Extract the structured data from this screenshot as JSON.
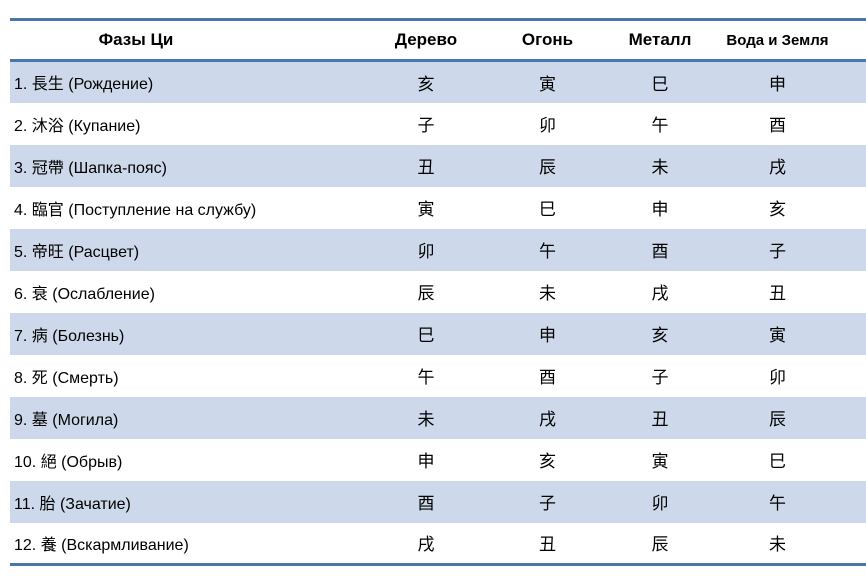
{
  "table": {
    "headers": [
      "Фазы Ци",
      "Дерево",
      "Огонь",
      "Металл",
      "Вода и Земля"
    ],
    "rows": [
      {
        "phase": "1. 長生 (Рождение)",
        "wood": "亥",
        "fire": "寅",
        "metal": "巳",
        "water_earth": "申"
      },
      {
        "phase": "2. 沐浴 (Купание)",
        "wood": "子",
        "fire": "卯",
        "metal": "午",
        "water_earth": "酉"
      },
      {
        "phase": "3. 冠帶 (Шапка-пояс)",
        "wood": "丑",
        "fire": "辰",
        "metal": "未",
        "water_earth": "戌"
      },
      {
        "phase": "4. 臨官 (Поступление на службу)",
        "wood": "寅",
        "fire": "巳",
        "metal": "申",
        "water_earth": "亥"
      },
      {
        "phase": "5. 帝旺 (Расцвет)",
        "wood": "卯",
        "fire": "午",
        "metal": "酉",
        "water_earth": "子"
      },
      {
        "phase": "6. 衰 (Ослабление)",
        "wood": "辰",
        "fire": "未",
        "metal": "戌",
        "water_earth": "丑"
      },
      {
        "phase": "7. 病 (Болезнь)",
        "wood": "巳",
        "fire": "申",
        "metal": "亥",
        "water_earth": "寅"
      },
      {
        "phase": "8. 死 (Смерть)",
        "wood": "午",
        "fire": "酉",
        "metal": "子",
        "water_earth": "卯"
      },
      {
        "phase": "9. 墓 (Могила)",
        "wood": "未",
        "fire": "戌",
        "metal": "丑",
        "water_earth": "辰"
      },
      {
        "phase": "10. 絕 (Обрыв)",
        "wood": "申",
        "fire": "亥",
        "metal": "寅",
        "water_earth": "巳"
      },
      {
        "phase": "11. 胎 (Зачатие)",
        "wood": "酉",
        "fire": "子",
        "metal": "卯",
        "water_earth": "午"
      },
      {
        "phase": "12. 養 (Вскармливание)",
        "wood": "戌",
        "fire": "丑",
        "metal": "辰",
        "water_earth": "未"
      }
    ]
  },
  "colors": {
    "border_blue": "#4a77ab",
    "band_blue": "#cdd9ea",
    "text": "#000000",
    "background": "#ffffff"
  }
}
